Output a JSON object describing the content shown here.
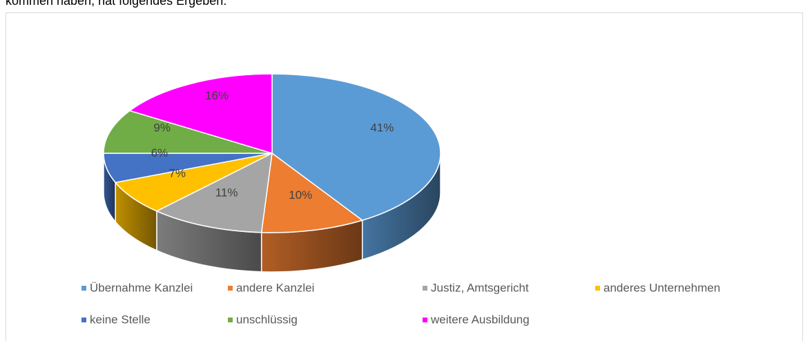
{
  "intro_text": "kommen haben, hat folgendes Ergeben:",
  "chart_data": {
    "type": "pie",
    "categories": [
      "Übernahme Kanzlei",
      "andere Kanzlei",
      "Justiz, Amtsgericht",
      "anderes Unternehmen",
      "keine Stelle",
      "unschlüssig",
      "weitere Ausbildung"
    ],
    "values": [
      41,
      10,
      11,
      7,
      6,
      9,
      16
    ],
    "value_labels": [
      "41%",
      "10%",
      "11%",
      "7%",
      "6%",
      "9%",
      "16%"
    ],
    "colors": [
      "#5b9bd5",
      "#ed7d31",
      "#a5a5a5",
      "#ffc000",
      "#4472c4",
      "#70ad47",
      "#ff00ff"
    ],
    "legend": "bottom"
  }
}
